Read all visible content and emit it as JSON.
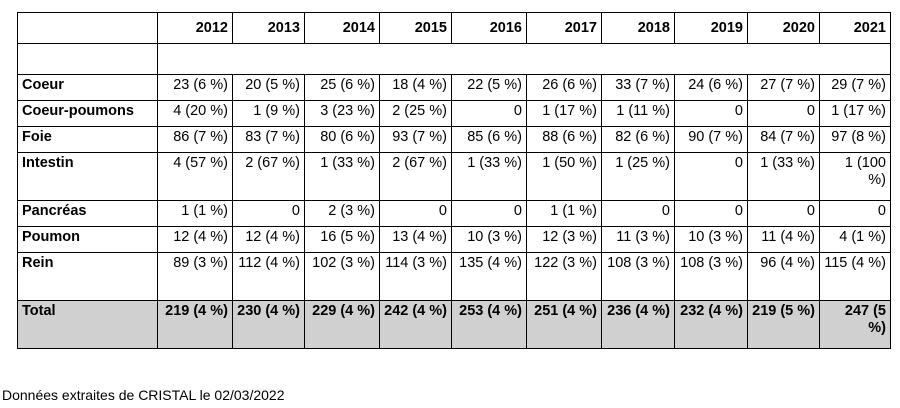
{
  "table": {
    "corner": "",
    "years": [
      "2012",
      "2013",
      "2014",
      "2015",
      "2016",
      "2017",
      "2018",
      "2019",
      "2020",
      "2021"
    ],
    "rows": [
      {
        "name": "Coeur",
        "values": [
          "23 (6 %)",
          "20 (5 %)",
          "25 (6 %)",
          "18 (4 %)",
          "22 (5 %)",
          "26 (6 %)",
          "33 (7 %)",
          "24 (6 %)",
          "27 (7 %)",
          "29 (7 %)"
        ]
      },
      {
        "name": "Coeur-poumons",
        "values": [
          "4 (20 %)",
          "1 (9 %)",
          "3 (23 %)",
          "2 (25 %)",
          "0",
          "1 (17 %)",
          "1 (11 %)",
          "0",
          "0",
          "1 (17 %)"
        ]
      },
      {
        "name": "Foie",
        "values": [
          "86 (7 %)",
          "83 (7 %)",
          "80 (6 %)",
          "93 (7 %)",
          "85 (6 %)",
          "88 (6 %)",
          "82 (6 %)",
          "90 (7 %)",
          "84 (7 %)",
          "97 (8 %)"
        ]
      },
      {
        "name": "Intestin",
        "values": [
          "4 (57 %)",
          "2 (67 %)",
          "1 (33 %)",
          "2 (67 %)",
          "1 (33 %)",
          "1 (50 %)",
          "1 (25 %)",
          "0",
          "1 (33 %)",
          "1 (100 %)"
        ]
      },
      {
        "name": "Pancréas",
        "values": [
          "1 (1 %)",
          "0",
          "2 (3 %)",
          "0",
          "0",
          "1 (1 %)",
          "0",
          "0",
          "0",
          "0"
        ]
      },
      {
        "name": "Poumon",
        "values": [
          "12 (4 %)",
          "12 (4 %)",
          "16 (5 %)",
          "13 (4 %)",
          "10 (3 %)",
          "12 (3 %)",
          "11 (3 %)",
          "10 (3 %)",
          "11 (4 %)",
          "4 (1 %)"
        ]
      },
      {
        "name": "Rein",
        "values": [
          "89 (3 %)",
          "112 (4 %)",
          "102 (3 %)",
          "114 (3 %)",
          "135 (4 %)",
          "122 (3 %)",
          "108 (3 %)",
          "108 (3 %)",
          "96 (4 %)",
          "115 (4 %)"
        ]
      }
    ],
    "total": {
      "name": "Total",
      "values": [
        "219 (4 %)",
        "230 (4 %)",
        "229 (4 %)",
        "242 (4 %)",
        "253 (4 %)",
        "251 (4 %)",
        "236 (4 %)",
        "232 (4 %)",
        "219 (5 %)",
        "247 (5 %)"
      ]
    }
  },
  "footer": "Données extraites de CRISTAL le 02/03/2022",
  "colors": {
    "total_row_background": "#d0d0d0",
    "border": "#000000"
  }
}
